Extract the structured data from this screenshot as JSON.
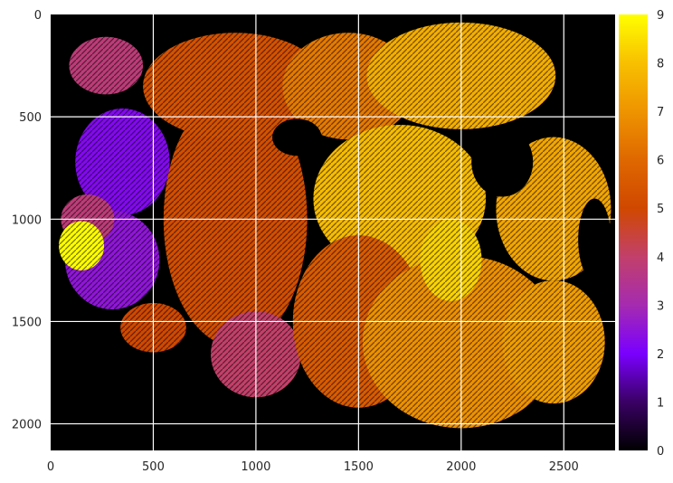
{
  "chart_data": {
    "type": "heatmap",
    "title": "",
    "xlabel": "",
    "ylabel": "",
    "xlim": [
      0,
      2750
    ],
    "ylim": [
      2130,
      0
    ],
    "x_ticks": [
      0,
      500,
      1000,
      1500,
      2000,
      2500
    ],
    "y_ticks": [
      0,
      500,
      1000,
      1500,
      2000
    ],
    "grid": true,
    "grid_color": "#ffffff",
    "background_color": "#000000",
    "colormap": "gnuplot",
    "colorbar": {
      "min": 0,
      "max": 9,
      "ticks": [
        0,
        1,
        2,
        3,
        4,
        5,
        6,
        7,
        8,
        9
      ],
      "stops": [
        "#000000",
        "#3a0064",
        "#7a00ff",
        "#a52bb0",
        "#c2406a",
        "#d04800",
        "#df6800",
        "#ee9400",
        "#f8c000",
        "#ffff00"
      ]
    },
    "regions": [
      {
        "label": "west-magenta-lobe",
        "value": 3.8,
        "cx": 270,
        "cy": 250,
        "rx": 180,
        "ry": 140
      },
      {
        "label": "west-purple-lobe",
        "value": 2.2,
        "cx": 350,
        "cy": 720,
        "rx": 230,
        "ry": 260
      },
      {
        "label": "southwest-purple-lobe",
        "value": 2.5,
        "cx": 300,
        "cy": 1200,
        "rx": 230,
        "ry": 240
      },
      {
        "label": "west-magenta-edge",
        "value": 3.8,
        "cx": 180,
        "cy": 1000,
        "rx": 130,
        "ry": 120
      },
      {
        "label": "west-yellow-patch",
        "value": 9.0,
        "cx": 150,
        "cy": 1130,
        "rx": 110,
        "ry": 120
      },
      {
        "label": "south-west-red-lobe",
        "value": 5.0,
        "cx": 500,
        "cy": 1530,
        "rx": 160,
        "ry": 120
      },
      {
        "label": "center-west-red",
        "value": 5.2,
        "cx": 900,
        "cy": 1000,
        "rx": 350,
        "ry": 620
      },
      {
        "label": "north-red",
        "value": 5.3,
        "cx": 900,
        "cy": 350,
        "rx": 450,
        "ry": 260
      },
      {
        "label": "south-magenta-lobe",
        "value": 4.0,
        "cx": 1000,
        "cy": 1660,
        "rx": 220,
        "ry": 210
      },
      {
        "label": "north-orange",
        "value": 6.4,
        "cx": 1450,
        "cy": 350,
        "rx": 320,
        "ry": 260
      },
      {
        "label": "north-east-gold",
        "value": 7.6,
        "cx": 2000,
        "cy": 300,
        "rx": 460,
        "ry": 260
      },
      {
        "label": "center-gold",
        "value": 7.9,
        "cx": 1700,
        "cy": 900,
        "rx": 420,
        "ry": 360
      },
      {
        "label": "east-gold",
        "value": 7.4,
        "cx": 2450,
        "cy": 950,
        "rx": 280,
        "ry": 350
      },
      {
        "label": "center-south-red",
        "value": 5.6,
        "cx": 1500,
        "cy": 1500,
        "rx": 320,
        "ry": 420
      },
      {
        "label": "south-orange",
        "value": 6.9,
        "cx": 2000,
        "cy": 1600,
        "rx": 480,
        "ry": 420
      },
      {
        "label": "south-east-orange",
        "value": 7.2,
        "cx": 2450,
        "cy": 1600,
        "rx": 250,
        "ry": 300
      },
      {
        "label": "center-gold-strip",
        "value": 8.3,
        "cx": 1950,
        "cy": 1200,
        "rx": 150,
        "ry": 200
      }
    ]
  }
}
